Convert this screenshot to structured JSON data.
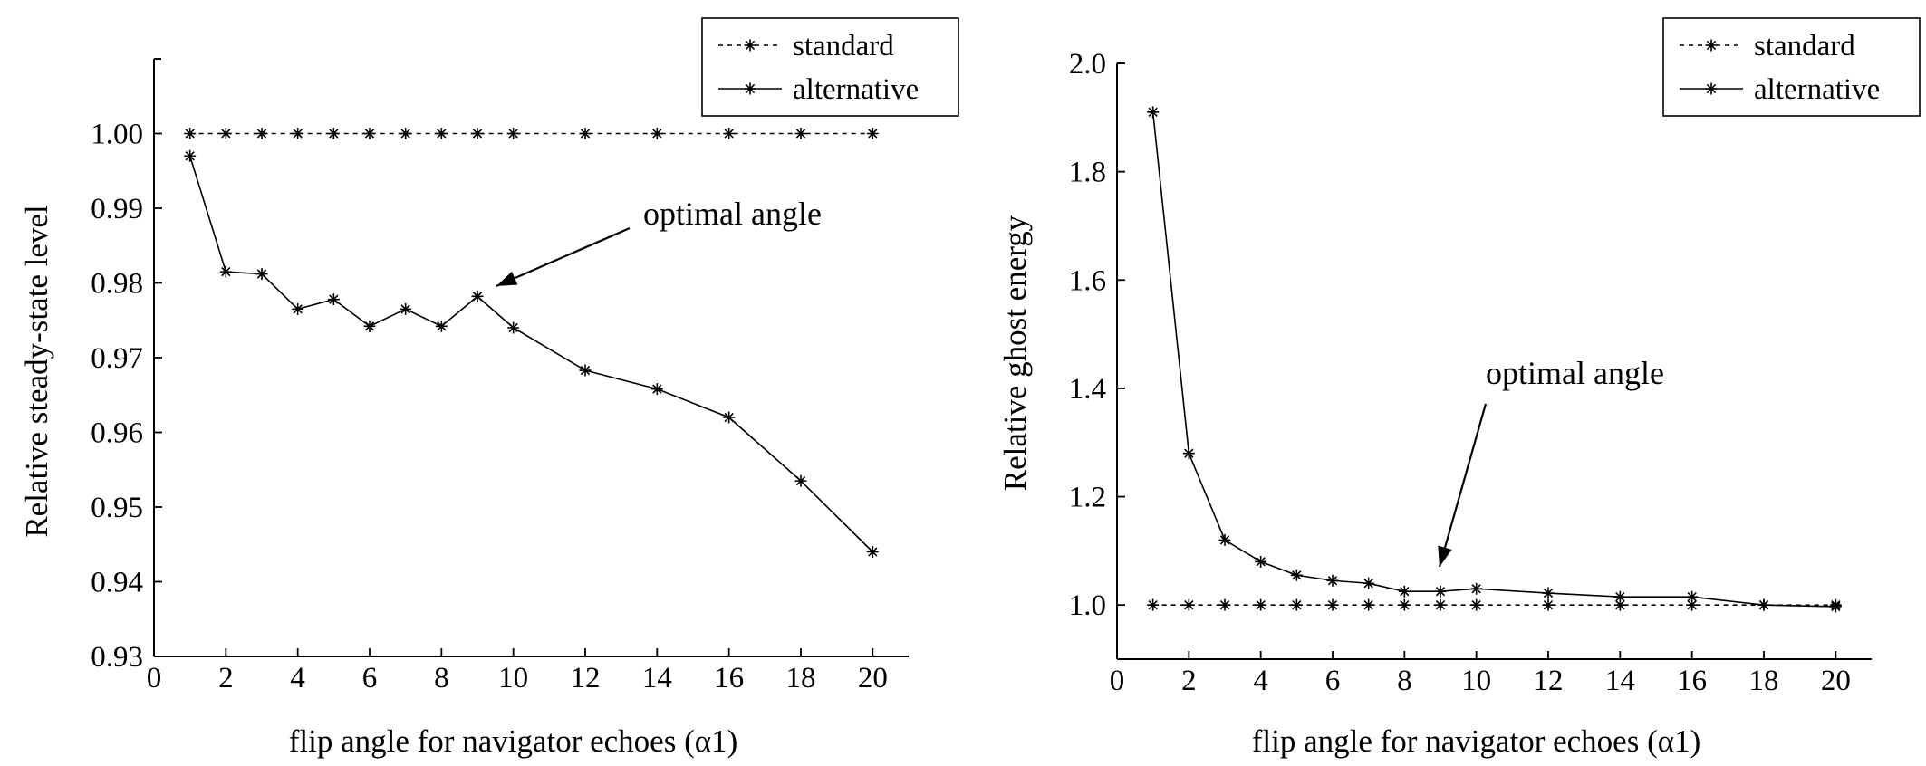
{
  "chart_data": [
    {
      "type": "line",
      "title": "",
      "xlabel": "flip angle for navigator echoes (α1)",
      "ylabel": "Relative steady-state level",
      "xlim": [
        0,
        21
      ],
      "ylim": [
        0.93,
        1.01
      ],
      "xticks": [
        0,
        2,
        4,
        6,
        8,
        10,
        12,
        14,
        16,
        18,
        20
      ],
      "yticks": [
        0.93,
        0.94,
        0.95,
        0.96,
        0.97,
        0.98,
        0.99,
        1.0
      ],
      "ytick_labels": [
        "0.93",
        "0.94",
        "0.95",
        "0.96",
        "0.97",
        "0.98",
        "0.99",
        "1.00"
      ],
      "x": [
        1,
        2,
        3,
        4,
        5,
        6,
        7,
        8,
        9,
        10,
        12,
        14,
        16,
        18,
        20
      ],
      "series": [
        {
          "name": "standard",
          "style": "dashed",
          "values": [
            1.0,
            1.0,
            1.0,
            1.0,
            1.0,
            1.0,
            1.0,
            1.0,
            1.0,
            1.0,
            1.0,
            1.0,
            1.0,
            1.0,
            1.0
          ]
        },
        {
          "name": "alternative",
          "style": "solid",
          "values": [
            0.997,
            0.9815,
            0.9812,
            0.9765,
            0.9778,
            0.9742,
            0.9765,
            0.9742,
            0.9782,
            0.974,
            0.9683,
            0.9658,
            0.962,
            0.9535,
            0.944
          ]
        }
      ],
      "legend": [
        "standard",
        "alternative"
      ],
      "legend_position": "top-right",
      "annotation": {
        "text": "optimal angle",
        "points_to": [
          9,
          0.9782
        ]
      }
    },
    {
      "type": "line",
      "title": "",
      "xlabel": "flip angle for navigator echoes (α1)",
      "ylabel": "Relative ghost energy",
      "xlim": [
        0,
        21
      ],
      "ylim": [
        0.9,
        2.0
      ],
      "xticks": [
        0,
        2,
        4,
        6,
        8,
        10,
        12,
        14,
        16,
        18,
        20
      ],
      "yticks": [
        1.0,
        1.2,
        1.4,
        1.6,
        1.8,
        2.0
      ],
      "ytick_labels": [
        "1.0",
        "1.2",
        "1.4",
        "1.6",
        "1.8",
        "2.0"
      ],
      "x": [
        1,
        2,
        3,
        4,
        5,
        6,
        7,
        8,
        9,
        10,
        12,
        14,
        16,
        18,
        20
      ],
      "series": [
        {
          "name": "standard",
          "style": "dashed",
          "values": [
            1.0,
            1.0,
            1.0,
            1.0,
            1.0,
            1.0,
            1.0,
            1.0,
            1.0,
            1.0,
            1.0,
            1.0,
            1.0,
            1.0,
            1.0
          ]
        },
        {
          "name": "alternative",
          "style": "solid",
          "values": [
            1.91,
            1.28,
            1.12,
            1.08,
            1.055,
            1.045,
            1.04,
            1.025,
            1.025,
            1.03,
            1.022,
            1.015,
            1.015,
            1.0,
            0.997
          ]
        }
      ],
      "legend": [
        "standard",
        "alternative"
      ],
      "legend_position": "top-right",
      "annotation": {
        "text": "optimal angle",
        "points_to": [
          9,
          1.07
        ]
      }
    }
  ]
}
